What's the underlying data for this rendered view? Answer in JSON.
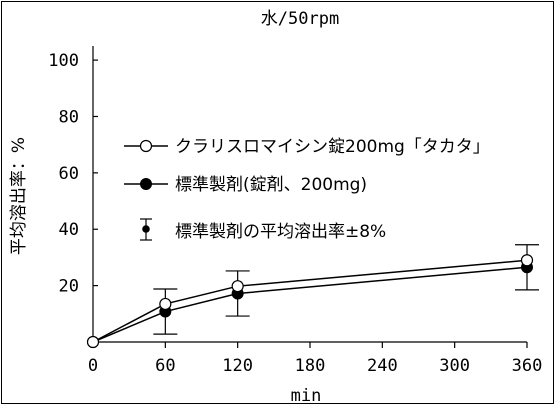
{
  "chart_data": {
    "type": "line",
    "title": "水/50rpm",
    "xlabel": "min",
    "ylabel": "平均溶出率：%",
    "xlim": [
      0,
      360
    ],
    "ylim": [
      0,
      105
    ],
    "x_ticks": [
      0,
      60,
      120,
      180,
      240,
      300,
      360
    ],
    "y_ticks": [
      20,
      40,
      60,
      80,
      100
    ],
    "grid": false,
    "legend_position": "center-left",
    "x": [
      0,
      60,
      120,
      360
    ],
    "series": [
      {
        "name": "クラリスロマイシン錠200mg「タカタ」",
        "marker": "open-circle",
        "color": "#000000",
        "values": [
          0,
          13.5,
          19.8,
          29.0
        ]
      },
      {
        "name": "標準製剤(錠剤、200mg)",
        "marker": "filled-circle",
        "color": "#000000",
        "values": [
          0,
          10.8,
          17.2,
          26.5
        ],
        "error_band": 8
      }
    ],
    "legend_extra": "標準製剤の平均溶出率±8%"
  }
}
